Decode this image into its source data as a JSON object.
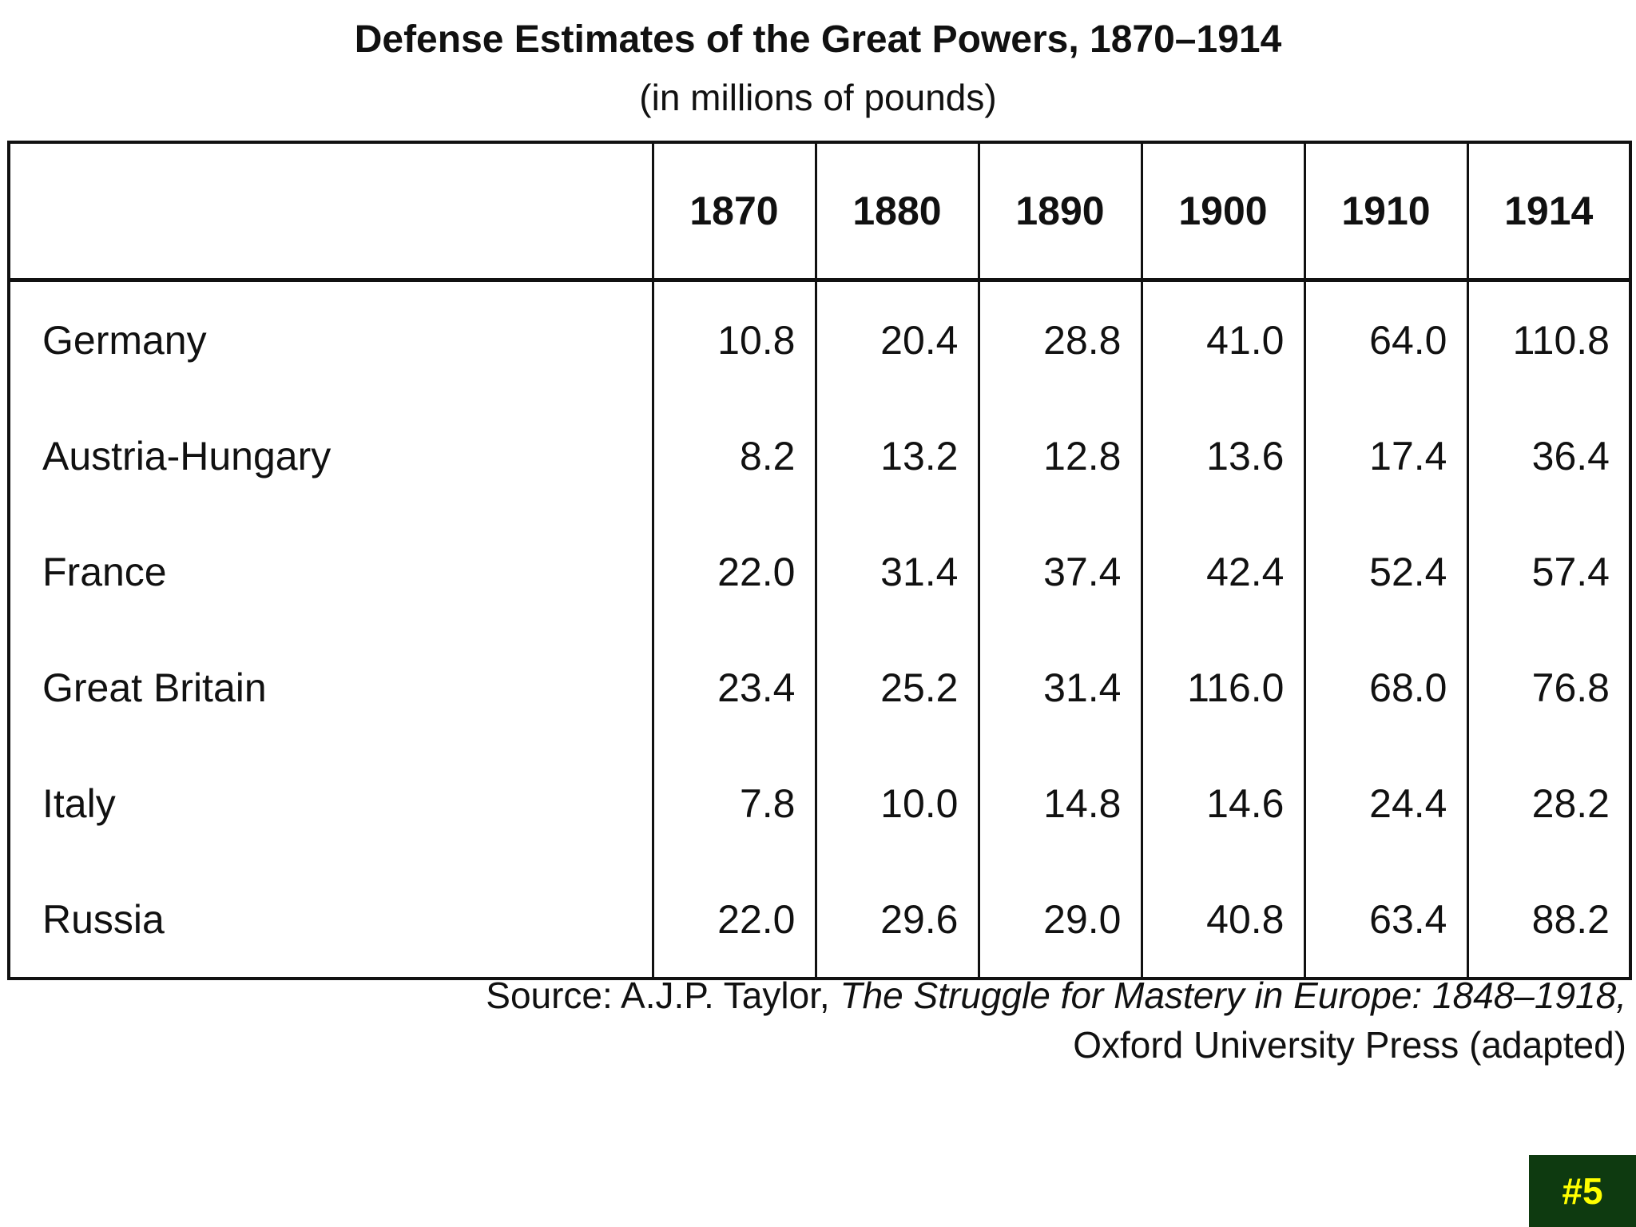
{
  "chart_data": {
    "type": "table",
    "title": "Defense Estimates of the Great Powers, 1870–1914",
    "subtitle": "(in millions of pounds)",
    "corner_header": "",
    "columns": [
      "1870",
      "1880",
      "1890",
      "1900",
      "1910",
      "1914"
    ],
    "rows": [
      {
        "name": "Germany",
        "values": [
          "10.8",
          "20.4",
          "28.8",
          "41.0",
          "64.0",
          "110.8"
        ]
      },
      {
        "name": "Austria-Hungary",
        "values": [
          "8.2",
          "13.2",
          "12.8",
          "13.6",
          "17.4",
          "36.4"
        ]
      },
      {
        "name": "France",
        "values": [
          "22.0",
          "31.4",
          "37.4",
          "42.4",
          "52.4",
          "57.4"
        ]
      },
      {
        "name": "Great Britain",
        "values": [
          "23.4",
          "25.2",
          "31.4",
          "116.0",
          "68.0",
          "76.8"
        ]
      },
      {
        "name": "Italy",
        "values": [
          "7.8",
          "10.0",
          "14.8",
          "14.6",
          "24.4",
          "28.2"
        ]
      },
      {
        "name": "Russia",
        "values": [
          "22.0",
          "29.6",
          "29.0",
          "40.8",
          "63.4",
          "88.2"
        ]
      }
    ]
  },
  "source": {
    "prefix": "Source:  A.J.P. Taylor, ",
    "book_title": "The Struggle for Mastery in Europe:  1848–1918,",
    "line2": "Oxford University Press (adapted)"
  },
  "slide_badge": "#5",
  "colors": {
    "badge_background": "#0e3a10",
    "badge_text": "#ffff00"
  }
}
